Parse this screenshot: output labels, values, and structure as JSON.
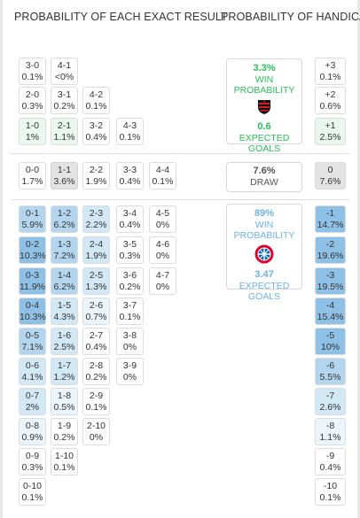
{
  "headers": {
    "exact": "PROBABILITY OF EACH EXACT RESULT",
    "handicap": "PROBABILITY OF HANDICAP"
  },
  "home_section": {
    "rows": [
      [
        {
          "score": "3-0",
          "pct": "0.1%"
        },
        {
          "score": "4-1",
          "pct": "<0%"
        }
      ],
      [
        {
          "score": "2-0",
          "pct": "0.3%"
        },
        {
          "score": "3-1",
          "pct": "0.2%"
        },
        {
          "score": "4-2",
          "pct": "0.1%"
        }
      ],
      [
        {
          "score": "1-0",
          "pct": "1%"
        },
        {
          "score": "2-1",
          "pct": "1.1%"
        },
        {
          "score": "3-2",
          "pct": "0.4%"
        },
        {
          "score": "4-3",
          "pct": "0.1%"
        }
      ]
    ],
    "card": {
      "pct": "3.3%",
      "label": "WIN PROBABILITY",
      "goals": "0.6",
      "goals_label": "EXPECTED GOALS",
      "color": "#2dbb5b"
    },
    "handicap": [
      {
        "label": "+3",
        "pct": "0.1%"
      },
      {
        "label": "+2",
        "pct": "0.6%"
      },
      {
        "label": "+1",
        "pct": "2.5%"
      }
    ]
  },
  "draw_section": {
    "row": [
      {
        "score": "0-0",
        "pct": "1.7%"
      },
      {
        "score": "1-1",
        "pct": "3.6%"
      },
      {
        "score": "2-2",
        "pct": "1.9%"
      },
      {
        "score": "3-3",
        "pct": "0.4%"
      },
      {
        "score": "4-4",
        "pct": "0.1%"
      }
    ],
    "card": {
      "pct": "7.6%",
      "label": "DRAW"
    },
    "handicap": {
      "label": "0",
      "pct": "7.6%"
    }
  },
  "away_section": {
    "columns": [
      [
        {
          "score": "0-1",
          "pct": "5.9%"
        },
        {
          "score": "0-2",
          "pct": "10.3%"
        },
        {
          "score": "0-3",
          "pct": "11.9%"
        },
        {
          "score": "0-4",
          "pct": "10.3%"
        },
        {
          "score": "0-5",
          "pct": "7.1%"
        },
        {
          "score": "0-6",
          "pct": "4.1%"
        },
        {
          "score": "0-7",
          "pct": "2%"
        },
        {
          "score": "0-8",
          "pct": "0.9%"
        },
        {
          "score": "0-9",
          "pct": "0.3%"
        },
        {
          "score": "0-10",
          "pct": "0.1%"
        }
      ],
      [
        {
          "score": "1-2",
          "pct": "6.2%"
        },
        {
          "score": "1-3",
          "pct": "7.2%"
        },
        {
          "score": "1-4",
          "pct": "6.2%"
        },
        {
          "score": "1-5",
          "pct": "4.3%"
        },
        {
          "score": "1-6",
          "pct": "2.5%"
        },
        {
          "score": "1-7",
          "pct": "1.2%"
        },
        {
          "score": "1-8",
          "pct": "0.5%"
        },
        {
          "score": "1-9",
          "pct": "0.2%"
        },
        {
          "score": "1-10",
          "pct": "0.1%"
        }
      ],
      [
        {
          "score": "2-3",
          "pct": "2.2%"
        },
        {
          "score": "2-4",
          "pct": "1.9%"
        },
        {
          "score": "2-5",
          "pct": "1.3%"
        },
        {
          "score": "2-6",
          "pct": "0.7%"
        },
        {
          "score": "2-7",
          "pct": "0.4%"
        },
        {
          "score": "2-8",
          "pct": "0.2%"
        },
        {
          "score": "2-9",
          "pct": "0.1%"
        },
        {
          "score": "2-10",
          "pct": "0%"
        }
      ],
      [
        {
          "score": "3-4",
          "pct": "0.4%"
        },
        {
          "score": "3-5",
          "pct": "0.3%"
        },
        {
          "score": "3-6",
          "pct": "0.2%"
        },
        {
          "score": "3-7",
          "pct": "0.1%"
        },
        {
          "score": "3-8",
          "pct": "0%"
        },
        {
          "score": "3-9",
          "pct": "0%"
        }
      ],
      [
        {
          "score": "4-5",
          "pct": "0%"
        },
        {
          "score": "4-6",
          "pct": "0%"
        },
        {
          "score": "4-7",
          "pct": "0%"
        }
      ]
    ],
    "card": {
      "pct": "89%",
      "label": "WIN PROBABILITY",
      "goals": "3.47",
      "goals_label": "EXPECTED GOALS",
      "color": "#6fb1e4"
    },
    "handicap": [
      {
        "label": "-1",
        "pct": "14.7%"
      },
      {
        "label": "-2",
        "pct": "19.6%"
      },
      {
        "label": "-3",
        "pct": "19.5%"
      },
      {
        "label": "-4",
        "pct": "15.4%"
      },
      {
        "label": "-5",
        "pct": "10%"
      },
      {
        "label": "-6",
        "pct": "5.5%"
      },
      {
        "label": "-7",
        "pct": "2.6%"
      },
      {
        "label": "-8",
        "pct": "1.1%"
      },
      {
        "label": "-9",
        "pct": "0.4%"
      },
      {
        "label": "-10",
        "pct": "0.1%"
      }
    ]
  },
  "icons": {
    "home_team": "flamengo-crest-icon",
    "away_team": "bayern-munich-crest-icon"
  }
}
